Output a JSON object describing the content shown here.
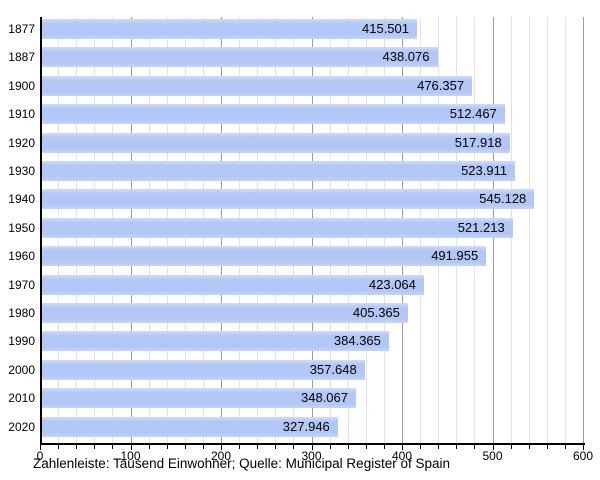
{
  "chart_data": {
    "type": "bar",
    "orientation": "horizontal",
    "title": "",
    "xlabel": "",
    "ylabel": "",
    "categories": [
      "1877",
      "1887",
      "1900",
      "1910",
      "1920",
      "1930",
      "1940",
      "1950",
      "1960",
      "1970",
      "1980",
      "1990",
      "2000",
      "2010",
      "2020"
    ],
    "values": [
      415.501,
      438.076,
      476.357,
      512.467,
      517.918,
      523.911,
      545.128,
      521.213,
      491.955,
      423.064,
      405.365,
      384.365,
      357.648,
      348.067,
      327.946
    ],
    "value_labels": [
      "415.501",
      "438.076",
      "476.357",
      "512.467",
      "517.918",
      "523.911",
      "545.128",
      "521.213",
      "491.955",
      "423.064",
      "405.365",
      "384.365",
      "357.648",
      "348.067",
      "327.946"
    ],
    "unit": "Tausend Einwohner",
    "xlim": [
      0,
      600
    ],
    "x_major_ticks": [
      0,
      100,
      200,
      300,
      400,
      500,
      600
    ],
    "x_tick_labels": [
      "0",
      "100",
      "200",
      "300",
      "400",
      "500",
      "600"
    ],
    "x_minor_step": 20,
    "grid": true,
    "legend": null,
    "colors": {
      "bar": "#b3c7f7",
      "bar_highlight": "#cfdcfb",
      "bar_lowlight": "#c4d3f9",
      "grid_minor": "#e2e2e2",
      "grid_major": "#9a9a9a",
      "axis": "#000000",
      "text": "#000000",
      "background": "#ffffff"
    }
  },
  "caption": "Zahlenleiste: Tausend Einwohner; Quelle: Municipal Register of Spain"
}
